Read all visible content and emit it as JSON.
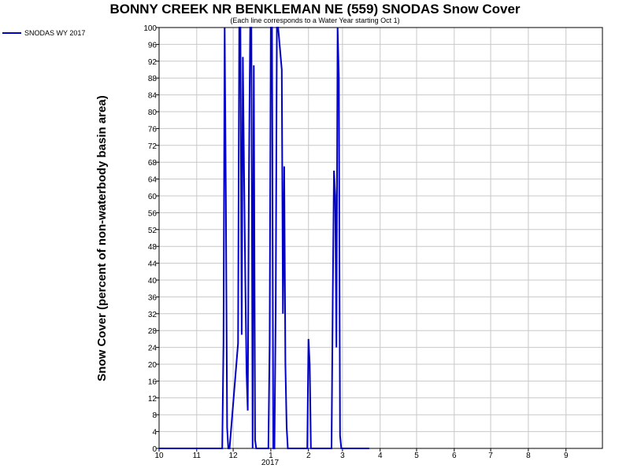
{
  "chart_data": {
    "type": "line",
    "title": "BONNY CREEK NR BENKLEMAN NE (559) SNODAS Snow Cover",
    "subtitle": "(Each line corresponds to a Water Year starting Oct 1)",
    "ylabel": "Snow Cover (percent of non-waterbody basin area)",
    "xlabel": "",
    "x_axis": {
      "unit": "month",
      "range": [
        "2016-10-01",
        "2017-10-01"
      ],
      "tick_labels": [
        "10",
        "11",
        "12",
        "1",
        "2",
        "3",
        "4",
        "5",
        "6",
        "7",
        "8",
        "9"
      ],
      "year_label": "2017"
    },
    "ylim": [
      0,
      100
    ],
    "y_ticks": [
      0,
      4,
      8,
      12,
      16,
      20,
      24,
      28,
      32,
      36,
      40,
      44,
      48,
      52,
      56,
      60,
      64,
      68,
      72,
      76,
      80,
      84,
      88,
      92,
      96,
      100
    ],
    "grid": true,
    "legend_position": "top-left",
    "series": [
      {
        "name": "SNODAS WY 2017",
        "color": "#0000c8",
        "x": [
          "2016-10-01",
          "2016-11-22",
          "2016-11-23",
          "2016-11-24",
          "2016-11-25",
          "2016-11-26",
          "2016-11-27",
          "2016-11-28",
          "2016-12-05",
          "2016-12-06",
          "2016-12-07",
          "2016-12-08",
          "2016-12-09",
          "2016-12-10",
          "2016-12-11",
          "2016-12-12",
          "2016-12-13",
          "2016-12-14",
          "2016-12-15",
          "2016-12-16",
          "2016-12-17",
          "2016-12-18",
          "2016-12-19",
          "2016-12-20",
          "2016-12-21",
          "2016-12-22",
          "2016-12-23",
          "2016-12-24",
          "2016-12-25",
          "2016-12-26",
          "2016-12-27",
          "2016-12-30",
          "2016-12-31",
          "2017-01-01",
          "2017-01-02",
          "2017-01-03",
          "2017-01-04",
          "2017-01-05",
          "2017-01-06",
          "2017-01-07",
          "2017-01-10",
          "2017-01-11",
          "2017-01-12",
          "2017-01-13",
          "2017-01-14",
          "2017-01-15",
          "2017-01-16",
          "2017-01-17",
          "2017-01-18",
          "2017-01-19",
          "2017-01-20",
          "2017-01-21",
          "2017-01-24",
          "2017-01-31",
          "2017-02-01",
          "2017-02-02",
          "2017-02-03",
          "2017-02-04",
          "2017-02-05",
          "2017-02-20",
          "2017-02-21",
          "2017-02-22",
          "2017-02-23",
          "2017-02-24",
          "2017-02-25",
          "2017-02-26",
          "2017-02-27",
          "2017-02-28",
          "2017-03-01",
          "2017-03-02",
          "2017-03-03",
          "2017-03-05",
          "2017-03-23"
        ],
        "y": [
          0,
          0,
          25,
          100,
          60,
          5,
          0,
          0,
          25,
          100,
          100,
          27,
          93,
          64,
          40,
          18,
          9,
          65,
          100,
          100,
          0,
          91,
          2,
          0,
          0,
          0,
          0,
          0,
          0,
          0,
          0,
          0,
          25,
          100,
          100,
          0,
          0,
          33,
          100,
          100,
          90,
          32,
          67,
          20,
          5,
          0,
          0,
          0,
          0,
          0,
          0,
          0,
          0,
          0,
          26,
          20,
          0,
          0,
          0,
          0,
          37,
          66,
          60,
          24,
          100,
          88,
          3,
          0,
          0,
          0,
          0,
          0,
          0
        ]
      }
    ]
  }
}
